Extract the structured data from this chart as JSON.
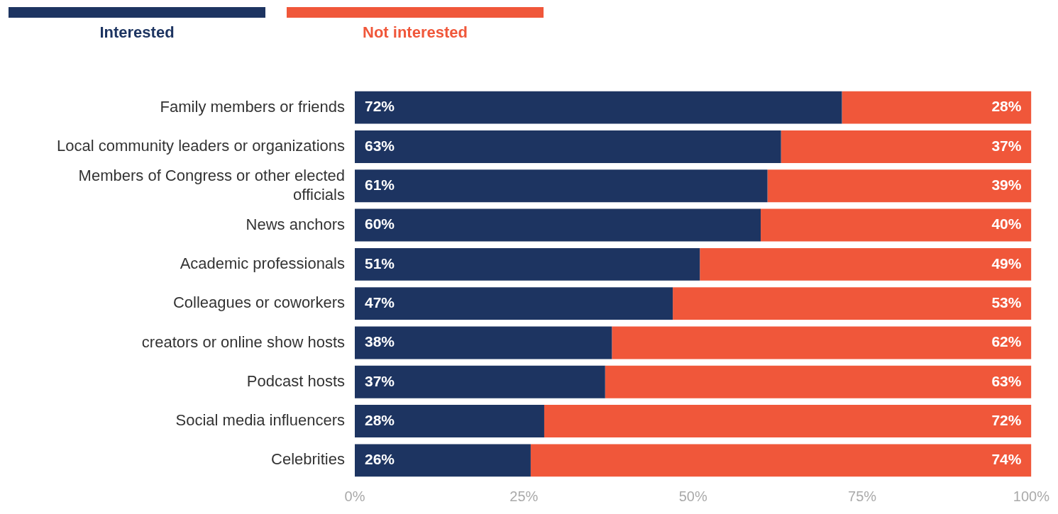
{
  "chart_data": {
    "type": "bar",
    "orientation": "horizontal",
    "stacked": true,
    "categories": [
      "Family members or friends",
      "Local community leaders or organizations",
      "Members of Congress or other elected officials",
      "News anchors",
      "Academic professionals",
      "Colleagues or coworkers",
      "creators or online show hosts",
      "Podcast hosts",
      "Social media influencers",
      "Celebrities"
    ],
    "series": [
      {
        "name": "Interested",
        "color": "#1d3461",
        "values": [
          72,
          63,
          61,
          60,
          51,
          47,
          38,
          37,
          28,
          26
        ],
        "value_labels": [
          "72%",
          "63%",
          "61%",
          "60%",
          "51%",
          "47%",
          "38%",
          "37%",
          "28%",
          "26%"
        ]
      },
      {
        "name": "Not interested",
        "color": "#f0573a",
        "values": [
          28,
          37,
          39,
          40,
          49,
          53,
          62,
          63,
          72,
          74
        ],
        "value_labels": [
          "28%",
          "37%",
          "39%",
          "40%",
          "49%",
          "53%",
          "62%",
          "63%",
          "72%",
          "74%"
        ]
      }
    ],
    "xlim": [
      0,
      100
    ],
    "xticks": [
      {
        "value": 0,
        "label": "0%"
      },
      {
        "value": 25,
        "label": "25%"
      },
      {
        "value": 50,
        "label": "50%"
      },
      {
        "value": 75,
        "label": "75%"
      },
      {
        "value": 100,
        "label": "100%"
      }
    ],
    "grid": false,
    "legend": "top left"
  }
}
